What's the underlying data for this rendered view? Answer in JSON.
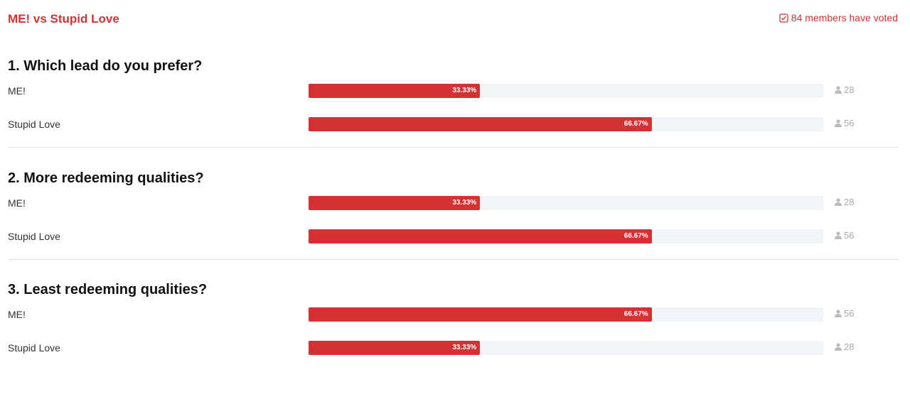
{
  "header": {
    "title": "ME! vs Stupid Love",
    "voted": "84 members have voted"
  },
  "questions": [
    {
      "title": "1. Which lead do you prefer?",
      "options": [
        {
          "label": "ME!",
          "percent": 33.33,
          "percent_label": "33.33%",
          "votes": 28
        },
        {
          "label": "Stupid Love",
          "percent": 66.67,
          "percent_label": "66.67%",
          "votes": 56
        }
      ]
    },
    {
      "title": "2. More redeeming qualities?",
      "options": [
        {
          "label": "ME!",
          "percent": 33.33,
          "percent_label": "33.33%",
          "votes": 28
        },
        {
          "label": "Stupid Love",
          "percent": 66.67,
          "percent_label": "66.67%",
          "votes": 56
        }
      ]
    },
    {
      "title": "3. Least redeeming qualities?",
      "options": [
        {
          "label": "ME!",
          "percent": 66.67,
          "percent_label": "66.67%",
          "votes": 56
        },
        {
          "label": "Stupid Love",
          "percent": 33.33,
          "percent_label": "33.33%",
          "votes": 28
        }
      ]
    }
  ]
}
